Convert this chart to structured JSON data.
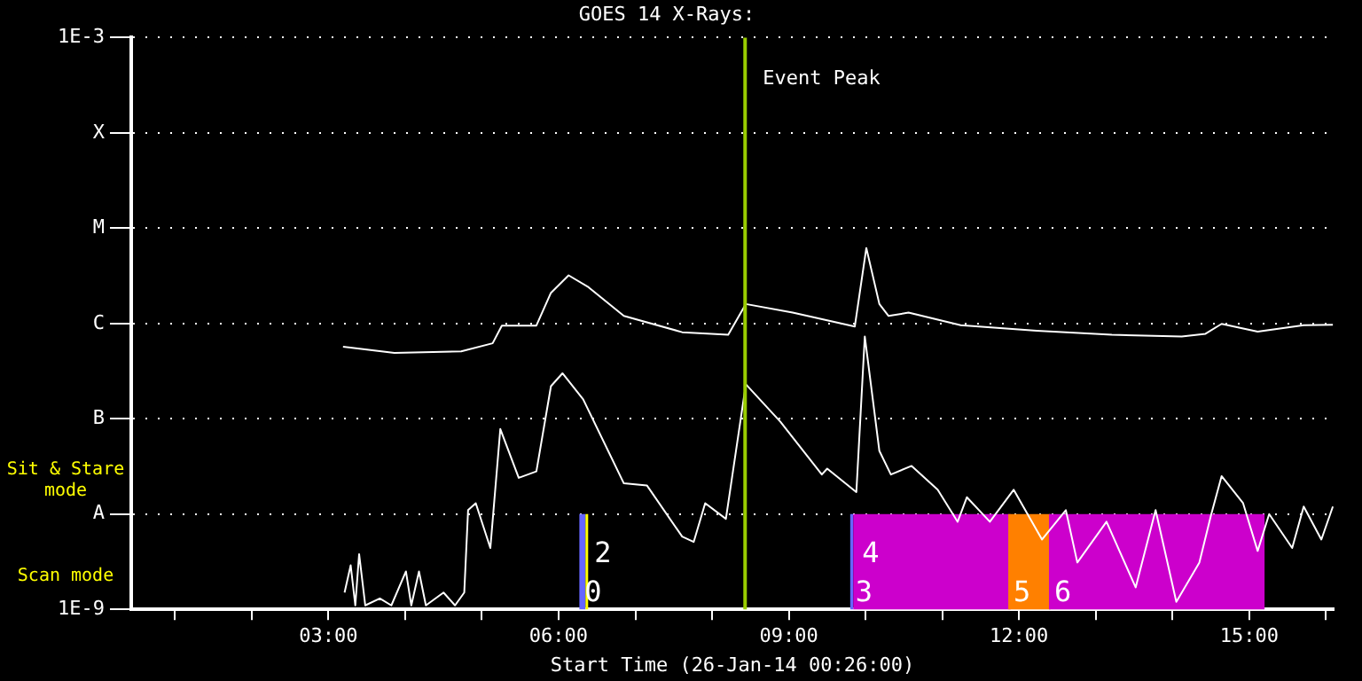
{
  "chart_data": {
    "type": "line",
    "title": "GOES 14 X-Rays:",
    "xlabel": "Start Time (26-Jan-14 00:26:00)",
    "series": [
      {
        "color": "#ffffff",
        "x": [
          3.19,
          3.86,
          4.73,
          5.14,
          5.26,
          5.71,
          5.9,
          6.13,
          6.39,
          6.85,
          7.61,
          8.21,
          8.44,
          9.05,
          9.86,
          10.01,
          10.18,
          10.3,
          10.56,
          11.24,
          12.23,
          13.21,
          14.12,
          14.43,
          14.64,
          15.11,
          15.71,
          16.09
        ],
        "values": [
          5.7e-07,
          4.9e-07,
          5.1e-07,
          6.2e-07,
          9.5e-07,
          9.5e-07,
          2.1e-06,
          3.2e-06,
          2.4e-06,
          1.2e-06,
          8.1e-07,
          7.6e-07,
          1.6e-06,
          1.3e-06,
          9.3e-07,
          6.2e-06,
          1.6e-06,
          1.2e-06,
          1.3e-06,
          9.6e-07,
          8.4e-07,
          7.6e-07,
          7.3e-07,
          7.8e-07,
          9.9e-07,
          8.2e-07,
          9.6e-07,
          9.7e-07
        ]
      },
      {
        "color": "#ffffff",
        "x": [
          3.21,
          3.29,
          3.35,
          3.4,
          3.48,
          3.67,
          3.82,
          4.01,
          4.08,
          4.18,
          4.27,
          4.5,
          4.65,
          4.77,
          4.82,
          4.92,
          5.11,
          5.24,
          5.48,
          5.71,
          5.9,
          6.05,
          6.32,
          6.85,
          7.15,
          7.61,
          7.76,
          7.91,
          8.18,
          8.44,
          8.89,
          9.43,
          9.5,
          9.88,
          9.99,
          10.18,
          10.33,
          10.6,
          10.94,
          11.2,
          11.32,
          11.62,
          11.93,
          12.3,
          12.61,
          12.76,
          13.14,
          13.52,
          13.78,
          14.05,
          14.35,
          14.5,
          14.64,
          14.92,
          15.11,
          15.26,
          15.56,
          15.71,
          15.94,
          16.09
        ],
        "values": [
          1.5e-09,
          2.9e-09,
          1.1e-09,
          3.8e-09,
          1.1e-09,
          1.3e-09,
          1.1e-09,
          2.5e-09,
          1.1e-09,
          2.5e-09,
          1.1e-09,
          1.5e-09,
          1.1e-09,
          1.5e-09,
          1.1e-08,
          1.3e-08,
          4.4e-09,
          7.8e-08,
          2.4e-08,
          2.8e-08,
          2.2e-07,
          3e-07,
          1.6e-07,
          2.1e-08,
          2e-08,
          5.8e-09,
          5.1e-09,
          1.3e-08,
          8.9e-09,
          2.3e-07,
          9.3e-08,
          2.6e-08,
          3e-08,
          1.7e-08,
          7.3e-07,
          4.6e-08,
          2.6e-08,
          3.2e-08,
          1.8e-08,
          8.3e-09,
          1.5e-08,
          8.3e-09,
          1.8e-08,
          5.4e-09,
          1.1e-08,
          3.1e-09,
          8.3e-09,
          1.7e-09,
          1.1e-08,
          1.2e-09,
          3.1e-09,
          9.6e-09,
          2.5e-08,
          1.3e-08,
          4.1e-09,
          1e-08,
          4.4e-09,
          1.2e-08,
          5.4e-09,
          1.2e-08
        ]
      }
    ],
    "xlim": [
      0.43,
      16.1
    ],
    "xticks": [
      {
        "value": 1,
        "label": null
      },
      {
        "value": 2,
        "label": null
      },
      {
        "value": 3,
        "label": "03:00"
      },
      {
        "value": 4,
        "label": null
      },
      {
        "value": 5,
        "label": null
      },
      {
        "value": 6,
        "label": "06:00"
      },
      {
        "value": 7,
        "label": null
      },
      {
        "value": 8,
        "label": null
      },
      {
        "value": 9,
        "label": "09:00"
      },
      {
        "value": 10,
        "label": null
      },
      {
        "value": 11,
        "label": null
      },
      {
        "value": 12,
        "label": "12:00"
      },
      {
        "value": 13,
        "label": null
      },
      {
        "value": 14,
        "label": null
      },
      {
        "value": 15,
        "label": "15:00"
      },
      {
        "value": 16,
        "label": null
      }
    ],
    "ylim": [
      1e-09,
      0.001
    ],
    "yticks": [
      {
        "value": 1e-09,
        "label": "1E-9"
      },
      {
        "value": 1e-08,
        "label": "A"
      },
      {
        "value": 1e-07,
        "label": "B"
      },
      {
        "value": 1e-06,
        "label": "C"
      },
      {
        "value": 1e-05,
        "label": "M"
      },
      {
        "value": 0.0001,
        "label": "X"
      },
      {
        "value": 0.001,
        "label": "1E-3"
      }
    ],
    "log": "y",
    "grid": "y",
    "legend": false,
    "marker": "none",
    "line_style": "solid",
    "ref_lines": [
      {
        "axis": "x",
        "value": 8.43,
        "label": "Event Peak",
        "color": "#99cc00"
      }
    ],
    "bands": [
      {
        "axis": "x",
        "from": 6.27,
        "to": 6.35,
        "label": "0",
        "color": "#6666ff"
      },
      {
        "axis": "x",
        "from": 6.35,
        "to": 6.38,
        "label": "2",
        "color": "#ffff00"
      },
      {
        "axis": "x",
        "from": 9.8,
        "to": 9.84,
        "label": "3",
        "color": "#6666ff"
      },
      {
        "axis": "x",
        "from": 9.84,
        "to": 11.89,
        "label": "4",
        "color": "#cc00cc"
      },
      {
        "axis": "x",
        "from": 11.86,
        "to": 12.41,
        "label": "5",
        "color": "#ff8000"
      },
      {
        "axis": "x",
        "from": 12.39,
        "to": 15.2,
        "label": "6",
        "color": "#cc00cc"
      }
    ],
    "annotations": [
      "Sit & Stare mode",
      "Scan mode"
    ]
  }
}
